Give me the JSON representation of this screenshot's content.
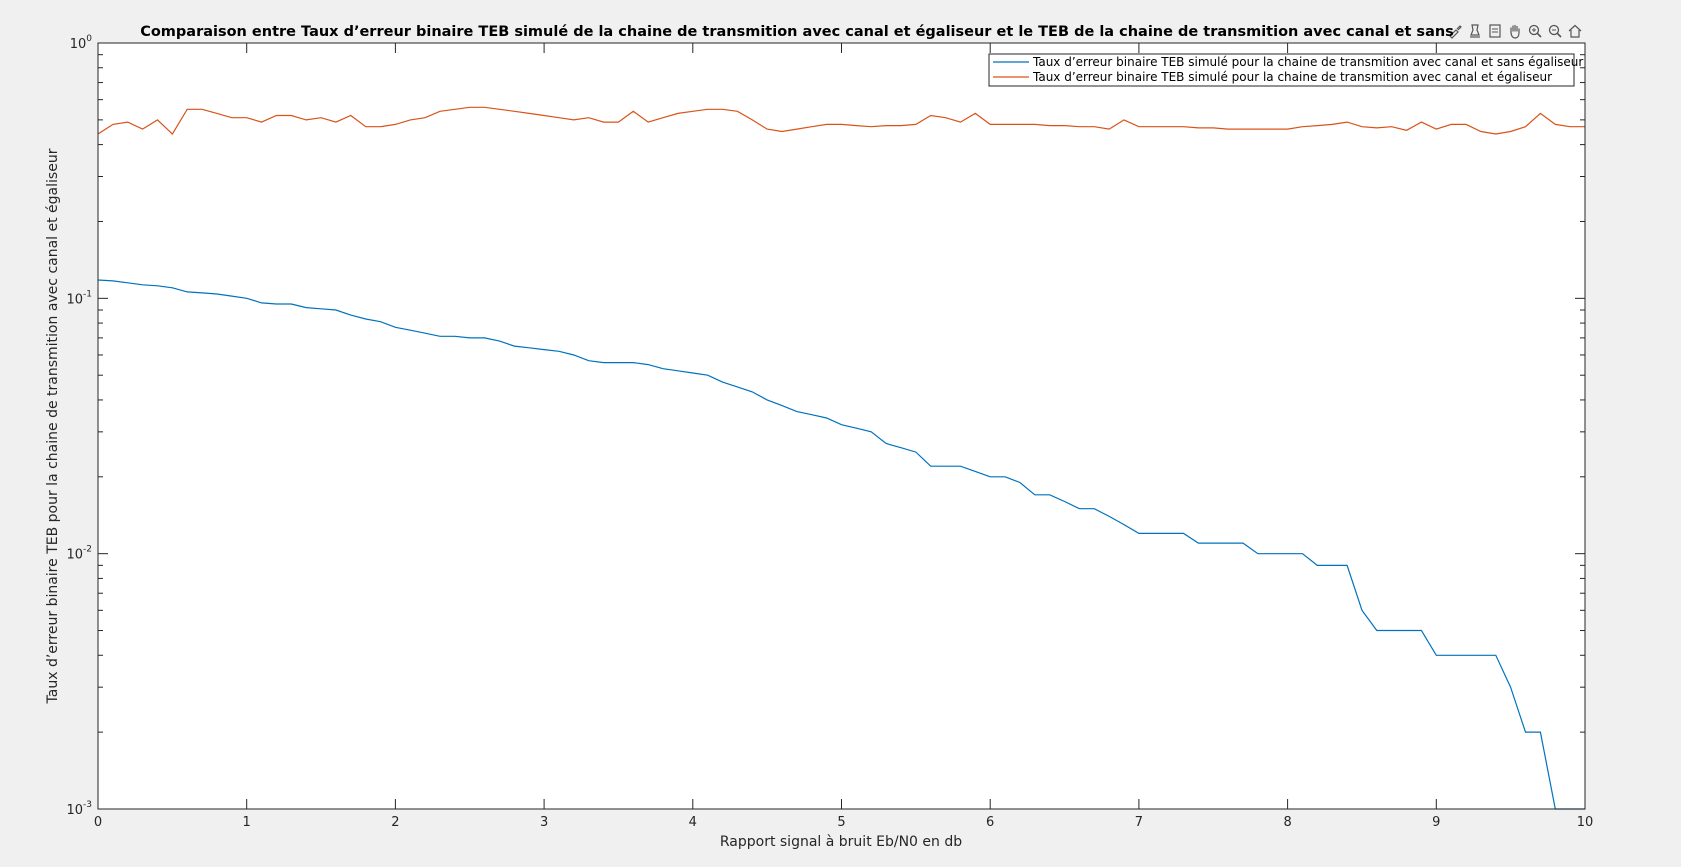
{
  "toolbar": {
    "icons": [
      "brush-icon",
      "data-tips-icon",
      "datatip-list-icon",
      "pan-hand-icon",
      "zoom-in-icon",
      "zoom-out-icon",
      "home-icon"
    ]
  },
  "colors": {
    "series_blue": "#0072bd",
    "series_orange": "#d95319",
    "figure_bg": "#f0f0f0",
    "axes_bg": "#ffffff"
  },
  "chart_data": {
    "type": "line",
    "title": "Comparaison entre Taux  d’erreur  binaire TEB simulé de la chaine de transmition avec canal et égaliseur et le TEB de la chaine de transmition avec canal et sans",
    "xlabel": "Rapport  signal à  bruit  Eb/N0 en db",
    "ylabel": "Taux  d’erreur  binaire TEB pour la chaine de transmition avec canal et égaliseur",
    "xlim": [
      0,
      10
    ],
    "ylim": [
      0.001,
      1
    ],
    "yscale": "log",
    "grid": false,
    "legend_position": "top-right",
    "x_ticks": [
      "0",
      "1",
      "2",
      "3",
      "4",
      "5",
      "6",
      "7",
      "8",
      "9",
      "10"
    ],
    "y_ticks": [
      {
        "base": "10",
        "exp": "-3",
        "value": 0.001
      },
      {
        "base": "10",
        "exp": "-2",
        "value": 0.01
      },
      {
        "base": "10",
        "exp": "-1",
        "value": 0.1
      },
      {
        "base": "10",
        "exp": "0",
        "value": 1
      }
    ],
    "x": [
      0,
      0.1,
      0.2,
      0.3,
      0.4,
      0.5,
      0.6,
      0.7,
      0.8,
      0.9,
      1,
      1.1,
      1.2,
      1.3,
      1.4,
      1.5,
      1.6,
      1.7,
      1.8,
      1.9,
      2,
      2.1,
      2.2,
      2.3,
      2.4,
      2.5,
      2.6,
      2.7,
      2.8,
      2.9,
      3,
      3.1,
      3.2,
      3.3,
      3.4,
      3.5,
      3.6,
      3.7,
      3.8,
      3.9,
      4,
      4.1,
      4.2,
      4.3,
      4.4,
      4.5,
      4.6,
      4.7,
      4.8,
      4.9,
      5,
      5.1,
      5.2,
      5.3,
      5.4,
      5.5,
      5.6,
      5.7,
      5.8,
      5.9,
      6,
      6.1,
      6.2,
      6.3,
      6.4,
      6.5,
      6.6,
      6.7,
      6.8,
      6.9,
      7,
      7.1,
      7.2,
      7.3,
      7.4,
      7.5,
      7.6,
      7.7,
      7.8,
      7.9,
      8,
      8.1,
      8.2,
      8.3,
      8.4,
      8.5,
      8.6,
      8.7,
      8.8,
      8.9,
      9,
      9.1,
      9.2,
      9.3,
      9.4,
      9.5,
      9.6,
      9.7,
      9.8,
      9.9,
      10
    ],
    "series": [
      {
        "name": "Taux  d’erreur  binaire TEB simulé pour la chaine de transmition avec canal et sans égaliseur",
        "color": "#0072bd",
        "values": [
          0.118,
          0.117,
          0.115,
          0.113,
          0.112,
          0.11,
          0.106,
          0.105,
          0.104,
          0.102,
          0.1,
          0.096,
          0.095,
          0.095,
          0.092,
          0.091,
          0.09,
          0.086,
          0.083,
          0.081,
          0.077,
          0.075,
          0.073,
          0.071,
          0.071,
          0.07,
          0.07,
          0.068,
          0.065,
          0.064,
          0.063,
          0.062,
          0.06,
          0.057,
          0.056,
          0.056,
          0.056,
          0.055,
          0.053,
          0.052,
          0.051,
          0.05,
          0.047,
          0.045,
          0.043,
          0.04,
          0.038,
          0.036,
          0.035,
          0.034,
          0.032,
          0.031,
          0.03,
          0.027,
          0.026,
          0.025,
          0.022,
          0.022,
          0.022,
          0.021,
          0.02,
          0.02,
          0.019,
          0.017,
          0.017,
          0.016,
          0.015,
          0.015,
          0.014,
          0.013,
          0.012,
          0.012,
          0.012,
          0.012,
          0.011,
          0.011,
          0.011,
          0.011,
          0.01,
          0.01,
          0.01,
          0.01,
          0.009,
          0.009,
          0.009,
          0.006,
          0.005,
          0.005,
          0.005,
          0.005,
          0.004,
          0.004,
          0.004,
          0.004,
          0.004,
          0.003,
          0.002,
          0.002,
          0.001,
          0.001,
          0.001
        ]
      },
      {
        "name": "Taux  d’erreur  binaire TEB simulé pour la chaine de transmition avec canal et  égaliseur",
        "color": "#d95319",
        "values": [
          0.44,
          0.48,
          0.49,
          0.46,
          0.5,
          0.44,
          0.55,
          0.55,
          0.53,
          0.51,
          0.51,
          0.49,
          0.52,
          0.52,
          0.5,
          0.51,
          0.49,
          0.52,
          0.47,
          0.47,
          0.48,
          0.5,
          0.51,
          0.54,
          0.55,
          0.56,
          0.56,
          0.55,
          0.54,
          0.53,
          0.52,
          0.51,
          0.5,
          0.51,
          0.49,
          0.49,
          0.54,
          0.49,
          0.51,
          0.53,
          0.54,
          0.55,
          0.55,
          0.54,
          0.5,
          0.46,
          0.45,
          0.46,
          0.47,
          0.48,
          0.48,
          0.475,
          0.47,
          0.475,
          0.475,
          0.48,
          0.52,
          0.51,
          0.49,
          0.53,
          0.48,
          0.48,
          0.48,
          0.48,
          0.475,
          0.475,
          0.47,
          0.47,
          0.46,
          0.5,
          0.47,
          0.47,
          0.47,
          0.47,
          0.465,
          0.465,
          0.46,
          0.46,
          0.46,
          0.46,
          0.46,
          0.47,
          0.475,
          0.48,
          0.49,
          0.47,
          0.465,
          0.47,
          0.455,
          0.49,
          0.46,
          0.48,
          0.48,
          0.45,
          0.44,
          0.45,
          0.47,
          0.53,
          0.48,
          0.47,
          0.47
        ]
      }
    ]
  }
}
